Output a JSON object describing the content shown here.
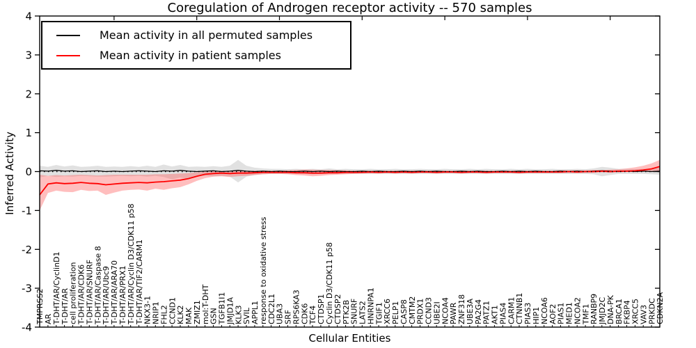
{
  "figure": {
    "background": "#ffffff",
    "accent_red": "#ff0000",
    "line_black": "#000000",
    "gray_band": "#aaaaaa",
    "red_band": "#ff5555"
  },
  "chart_data": {
    "type": "line",
    "title": "Coregulation of Androgen receptor activity -- 570 samples",
    "xlabel": "Cellular Entities",
    "ylabel": "Inferred Activity",
    "ylim": [
      -4,
      4
    ],
    "ytick_labels": [
      "4",
      "3",
      "2",
      "1",
      "0",
      "-1",
      "-2",
      "-3",
      "-4"
    ],
    "ytick_values": [
      4,
      3,
      2,
      1,
      0,
      -1,
      -2,
      -3,
      -4
    ],
    "grid": false,
    "zero_line_style": "dotted",
    "legend_position": "upper left",
    "categories": [
      "TMPRSS2",
      "AR",
      "T-DHT/AR/CyclinD1",
      "T-DHT/AR",
      "cell proliferation",
      "T-DHT/AR/CDK6",
      "T-DHT/AR/SNURF",
      "T-DHT/AR/Caspase 8",
      "T-DHT/AR/Ubc9",
      "T-DHT/AR/ARA70",
      "T-DHT/AR/PRX1",
      "T-DHT/AR/Cyclin D3/CDK11 p58",
      "T-DHT/AR/TIF2/CARM1",
      "NKX3-1",
      "NRIP1",
      "FHL2",
      "CCND1",
      "KLK2",
      "MAK",
      "ZMIZ1",
      "mol:T-DHT",
      "GSN",
      "TGFB1I1",
      "JMJD1A",
      "KLK3",
      "SVIL",
      "APPL1",
      "response to oxidative stress",
      "CDC2L1",
      "UBA3",
      "SRF",
      "RPS6KA3",
      "CDK6",
      "TCF4",
      "CTDSP1",
      "Cyclin D3/CDK11 p58",
      "CTDSP2",
      "PTK2B",
      "SNURF",
      "LATS2",
      "HNRNPA1",
      "TGIF1",
      "XRCC6",
      "PELP1",
      "CASP8",
      "CMTM2",
      "PRDX1",
      "CCND3",
      "UBE2I",
      "NCOA4",
      "PAWR",
      "ZNF318",
      "UBE3A",
      "PA2G4",
      "PATZ1",
      "AKT1",
      "PIAS4",
      "CARM1",
      "CTNNB1",
      "PIAS3",
      "HIP1",
      "NCOA6",
      "AOF2",
      "PIAS1",
      "MED1",
      "NCOA2",
      "TMF1",
      "RANBP9",
      "JMJD2C",
      "DNA-PK",
      "BRCA1",
      "FKBP4",
      "XRCC5",
      "VAV3",
      "PRKDC",
      "CDKN2A"
    ],
    "series": [
      {
        "name": "Mean activity in all permuted samples",
        "color": "#000000",
        "band_color": "#aaaaaa",
        "values": [
          0.02,
          0.01,
          0.03,
          0.01,
          0.02,
          0.0,
          0.01,
          0.02,
          0.0,
          0.01,
          0.0,
          0.01,
          0.02,
          0.01,
          0.0,
          0.02,
          0.01,
          0.03,
          0.01,
          0.0,
          0.01,
          0.02,
          0.0,
          0.01,
          0.03,
          0.01,
          0.0,
          0.01,
          0.0,
          0.01,
          0.0,
          0.0,
          0.01,
          0.0,
          0.01,
          0.0,
          0.01,
          0.0,
          0.0,
          0.01,
          0.0,
          0.01,
          0.0,
          0.0,
          0.01,
          0.0,
          0.01,
          0.0,
          0.01,
          0.0,
          0.0,
          0.01,
          0.0,
          0.01,
          0.0,
          0.0,
          0.01,
          0.0,
          0.01,
          0.0,
          0.01,
          0.0,
          0.0,
          0.01,
          0.0,
          0.01,
          0.0,
          0.01,
          0.02,
          0.01,
          0.0,
          0.01,
          0.0,
          0.01,
          0.0,
          0.01
        ],
        "band_upper": [
          0.15,
          0.12,
          0.17,
          0.13,
          0.16,
          0.12,
          0.13,
          0.15,
          0.12,
          0.13,
          0.12,
          0.14,
          0.12,
          0.15,
          0.12,
          0.18,
          0.13,
          0.17,
          0.12,
          0.13,
          0.12,
          0.14,
          0.12,
          0.15,
          0.3,
          0.15,
          0.1,
          0.08,
          0.07,
          0.07,
          0.06,
          0.07,
          0.06,
          0.07,
          0.06,
          0.08,
          0.06,
          0.07,
          0.06,
          0.06,
          0.07,
          0.06,
          0.06,
          0.07,
          0.06,
          0.06,
          0.07,
          0.06,
          0.06,
          0.07,
          0.06,
          0.06,
          0.07,
          0.06,
          0.07,
          0.06,
          0.06,
          0.07,
          0.06,
          0.07,
          0.06,
          0.06,
          0.07,
          0.06,
          0.06,
          0.07,
          0.06,
          0.08,
          0.12,
          0.1,
          0.07,
          0.07,
          0.06,
          0.07,
          0.08,
          0.1
        ],
        "band_lower": [
          -0.15,
          -0.11,
          -0.14,
          -0.12,
          -0.13,
          -0.11,
          -0.12,
          -0.13,
          -0.13,
          -0.12,
          -0.11,
          -0.12,
          -0.11,
          -0.13,
          -0.11,
          -0.14,
          -0.2,
          -0.15,
          -0.2,
          -0.12,
          -0.11,
          -0.12,
          -0.11,
          -0.13,
          -0.28,
          -0.13,
          -0.09,
          -0.07,
          -0.06,
          -0.06,
          -0.06,
          -0.06,
          -0.06,
          -0.07,
          -0.06,
          -0.06,
          -0.06,
          -0.06,
          -0.06,
          -0.06,
          -0.06,
          -0.06,
          -0.06,
          -0.06,
          -0.06,
          -0.06,
          -0.06,
          -0.06,
          -0.06,
          -0.06,
          -0.06,
          -0.06,
          -0.06,
          -0.06,
          -0.06,
          -0.06,
          -0.06,
          -0.06,
          -0.06,
          -0.06,
          -0.06,
          -0.06,
          -0.06,
          -0.06,
          -0.06,
          -0.06,
          -0.06,
          -0.07,
          -0.12,
          -0.09,
          -0.06,
          -0.06,
          -0.06,
          -0.06,
          -0.07,
          -0.08
        ]
      },
      {
        "name": "Mean activity in patient samples",
        "color": "#ff0000",
        "band_color": "#ff5555",
        "values": [
          -0.6,
          -0.32,
          -0.29,
          -0.31,
          -0.3,
          -0.28,
          -0.3,
          -0.31,
          -0.34,
          -0.32,
          -0.3,
          -0.29,
          -0.28,
          -0.29,
          -0.27,
          -0.26,
          -0.24,
          -0.22,
          -0.18,
          -0.12,
          -0.07,
          -0.05,
          -0.04,
          -0.05,
          -0.04,
          -0.04,
          -0.03,
          -0.02,
          -0.02,
          -0.02,
          -0.02,
          -0.03,
          -0.03,
          -0.04,
          -0.04,
          -0.03,
          -0.03,
          -0.02,
          -0.02,
          -0.02,
          -0.01,
          -0.02,
          -0.01,
          -0.02,
          -0.01,
          -0.02,
          -0.01,
          -0.01,
          -0.02,
          -0.01,
          -0.01,
          -0.02,
          -0.01,
          -0.01,
          -0.02,
          -0.01,
          -0.01,
          -0.01,
          -0.02,
          -0.01,
          -0.01,
          -0.01,
          -0.01,
          -0.01,
          0.0,
          -0.01,
          0.0,
          0.0,
          0.01,
          0.0,
          0.01,
          0.01,
          0.02,
          0.04,
          0.07,
          0.13
        ],
        "band_upper": [
          -0.08,
          -0.11,
          -0.09,
          -0.1,
          -0.09,
          -0.08,
          -0.09,
          -0.1,
          -0.09,
          -0.08,
          -0.08,
          -0.08,
          -0.08,
          -0.08,
          -0.07,
          -0.07,
          -0.06,
          -0.05,
          -0.04,
          -0.02,
          0.0,
          0.01,
          0.02,
          0.01,
          0.02,
          0.02,
          0.02,
          0.02,
          0.02,
          0.02,
          0.03,
          0.04,
          0.05,
          0.05,
          0.04,
          0.04,
          0.03,
          0.03,
          0.02,
          0.02,
          0.02,
          0.02,
          0.02,
          0.02,
          0.02,
          0.02,
          0.02,
          0.02,
          0.02,
          0.02,
          0.02,
          0.02,
          0.02,
          0.02,
          0.02,
          0.02,
          0.02,
          0.02,
          0.02,
          0.02,
          0.02,
          0.02,
          0.02,
          0.03,
          0.03,
          0.03,
          0.03,
          0.04,
          0.04,
          0.05,
          0.06,
          0.08,
          0.11,
          0.15,
          0.21,
          0.3
        ],
        "band_lower": [
          -1.0,
          -0.55,
          -0.49,
          -0.52,
          -0.53,
          -0.47,
          -0.5,
          -0.49,
          -0.6,
          -0.54,
          -0.49,
          -0.47,
          -0.46,
          -0.49,
          -0.44,
          -0.47,
          -0.43,
          -0.4,
          -0.33,
          -0.24,
          -0.17,
          -0.13,
          -0.12,
          -0.14,
          -0.12,
          -0.11,
          -0.09,
          -0.07,
          -0.06,
          -0.06,
          -0.07,
          -0.09,
          -0.1,
          -0.12,
          -0.11,
          -0.09,
          -0.08,
          -0.07,
          -0.06,
          -0.05,
          -0.05,
          -0.05,
          -0.04,
          -0.05,
          -0.04,
          -0.05,
          -0.04,
          -0.04,
          -0.05,
          -0.04,
          -0.04,
          -0.05,
          -0.04,
          -0.04,
          -0.05,
          -0.04,
          -0.04,
          -0.04,
          -0.05,
          -0.04,
          -0.04,
          -0.04,
          -0.04,
          -0.04,
          -0.03,
          -0.04,
          -0.03,
          -0.03,
          -0.02,
          -0.03,
          -0.02,
          -0.01,
          0.0,
          0.0,
          0.01,
          0.02
        ]
      }
    ]
  }
}
